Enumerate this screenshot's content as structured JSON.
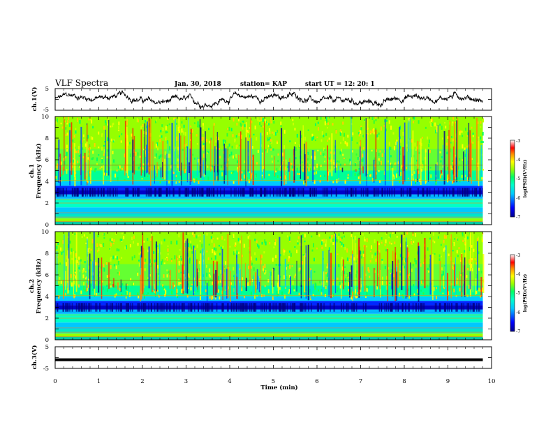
{
  "header": {
    "title": "VLF Spectra",
    "date": "Jan. 30, 2018",
    "station": "station= KAP",
    "start": "start  UT  =   12: 20: 1"
  },
  "chart_data": [
    {
      "type": "line",
      "name": "ch1-waveform",
      "ylabel": "ch.1(V)",
      "ylim": [
        -5,
        5
      ],
      "yticks": [
        "5",
        "-5"
      ],
      "xlim": [
        0,
        10
      ]
    },
    {
      "type": "heatmap",
      "name": "ch1-spectrogram",
      "ylabel_line1": "ch.1",
      "ylabel_line2": "Frequency (kHz)",
      "ylim": [
        0,
        10
      ],
      "yticks": [
        "10",
        "8",
        "6",
        "4",
        "2",
        "0"
      ],
      "xlim": [
        0,
        10
      ],
      "data_end_min": 9.8,
      "colorbar": {
        "label": "log(PSD)(V²/Hz)",
        "range": [
          -7,
          -3
        ],
        "ticks": [
          "-3",
          "-4",
          "-5",
          "-6",
          "-7"
        ]
      }
    },
    {
      "type": "heatmap",
      "name": "ch2-spectrogram",
      "ylabel_line1": "ch.2",
      "ylabel_line2": "Frequency (kHz)",
      "ylim": [
        0,
        10
      ],
      "yticks": [
        "10",
        "8",
        "6",
        "4",
        "2",
        "0"
      ],
      "xlim": [
        0,
        10
      ],
      "data_end_min": 9.8,
      "colorbar": {
        "label": "log(PSD)(V²/Hz)",
        "range": [
          -7,
          -3
        ],
        "ticks": [
          "-3",
          "-4",
          "-5",
          "-6",
          "-7"
        ]
      }
    },
    {
      "type": "line",
      "name": "ch3-waveform",
      "ylabel": "ch.3(V)",
      "ylim": [
        -5,
        5
      ],
      "yticks": [
        "5",
        "-5"
      ],
      "xlim": [
        0,
        10
      ],
      "level_v": -1.0
    }
  ],
  "xaxis": {
    "label": "Time (min)",
    "ticks": [
      "0",
      "1",
      "2",
      "3",
      "4",
      "5",
      "6",
      "7",
      "8",
      "9",
      "10"
    ]
  },
  "colors": {
    "line": "#000000",
    "colormap": [
      "#00008c",
      "#0000ff",
      "#00c8ff",
      "#00ffc8",
      "#00ff64",
      "#96ff00",
      "#ffff00",
      "#ff8c00",
      "#ff0000",
      "#ffffff"
    ]
  }
}
